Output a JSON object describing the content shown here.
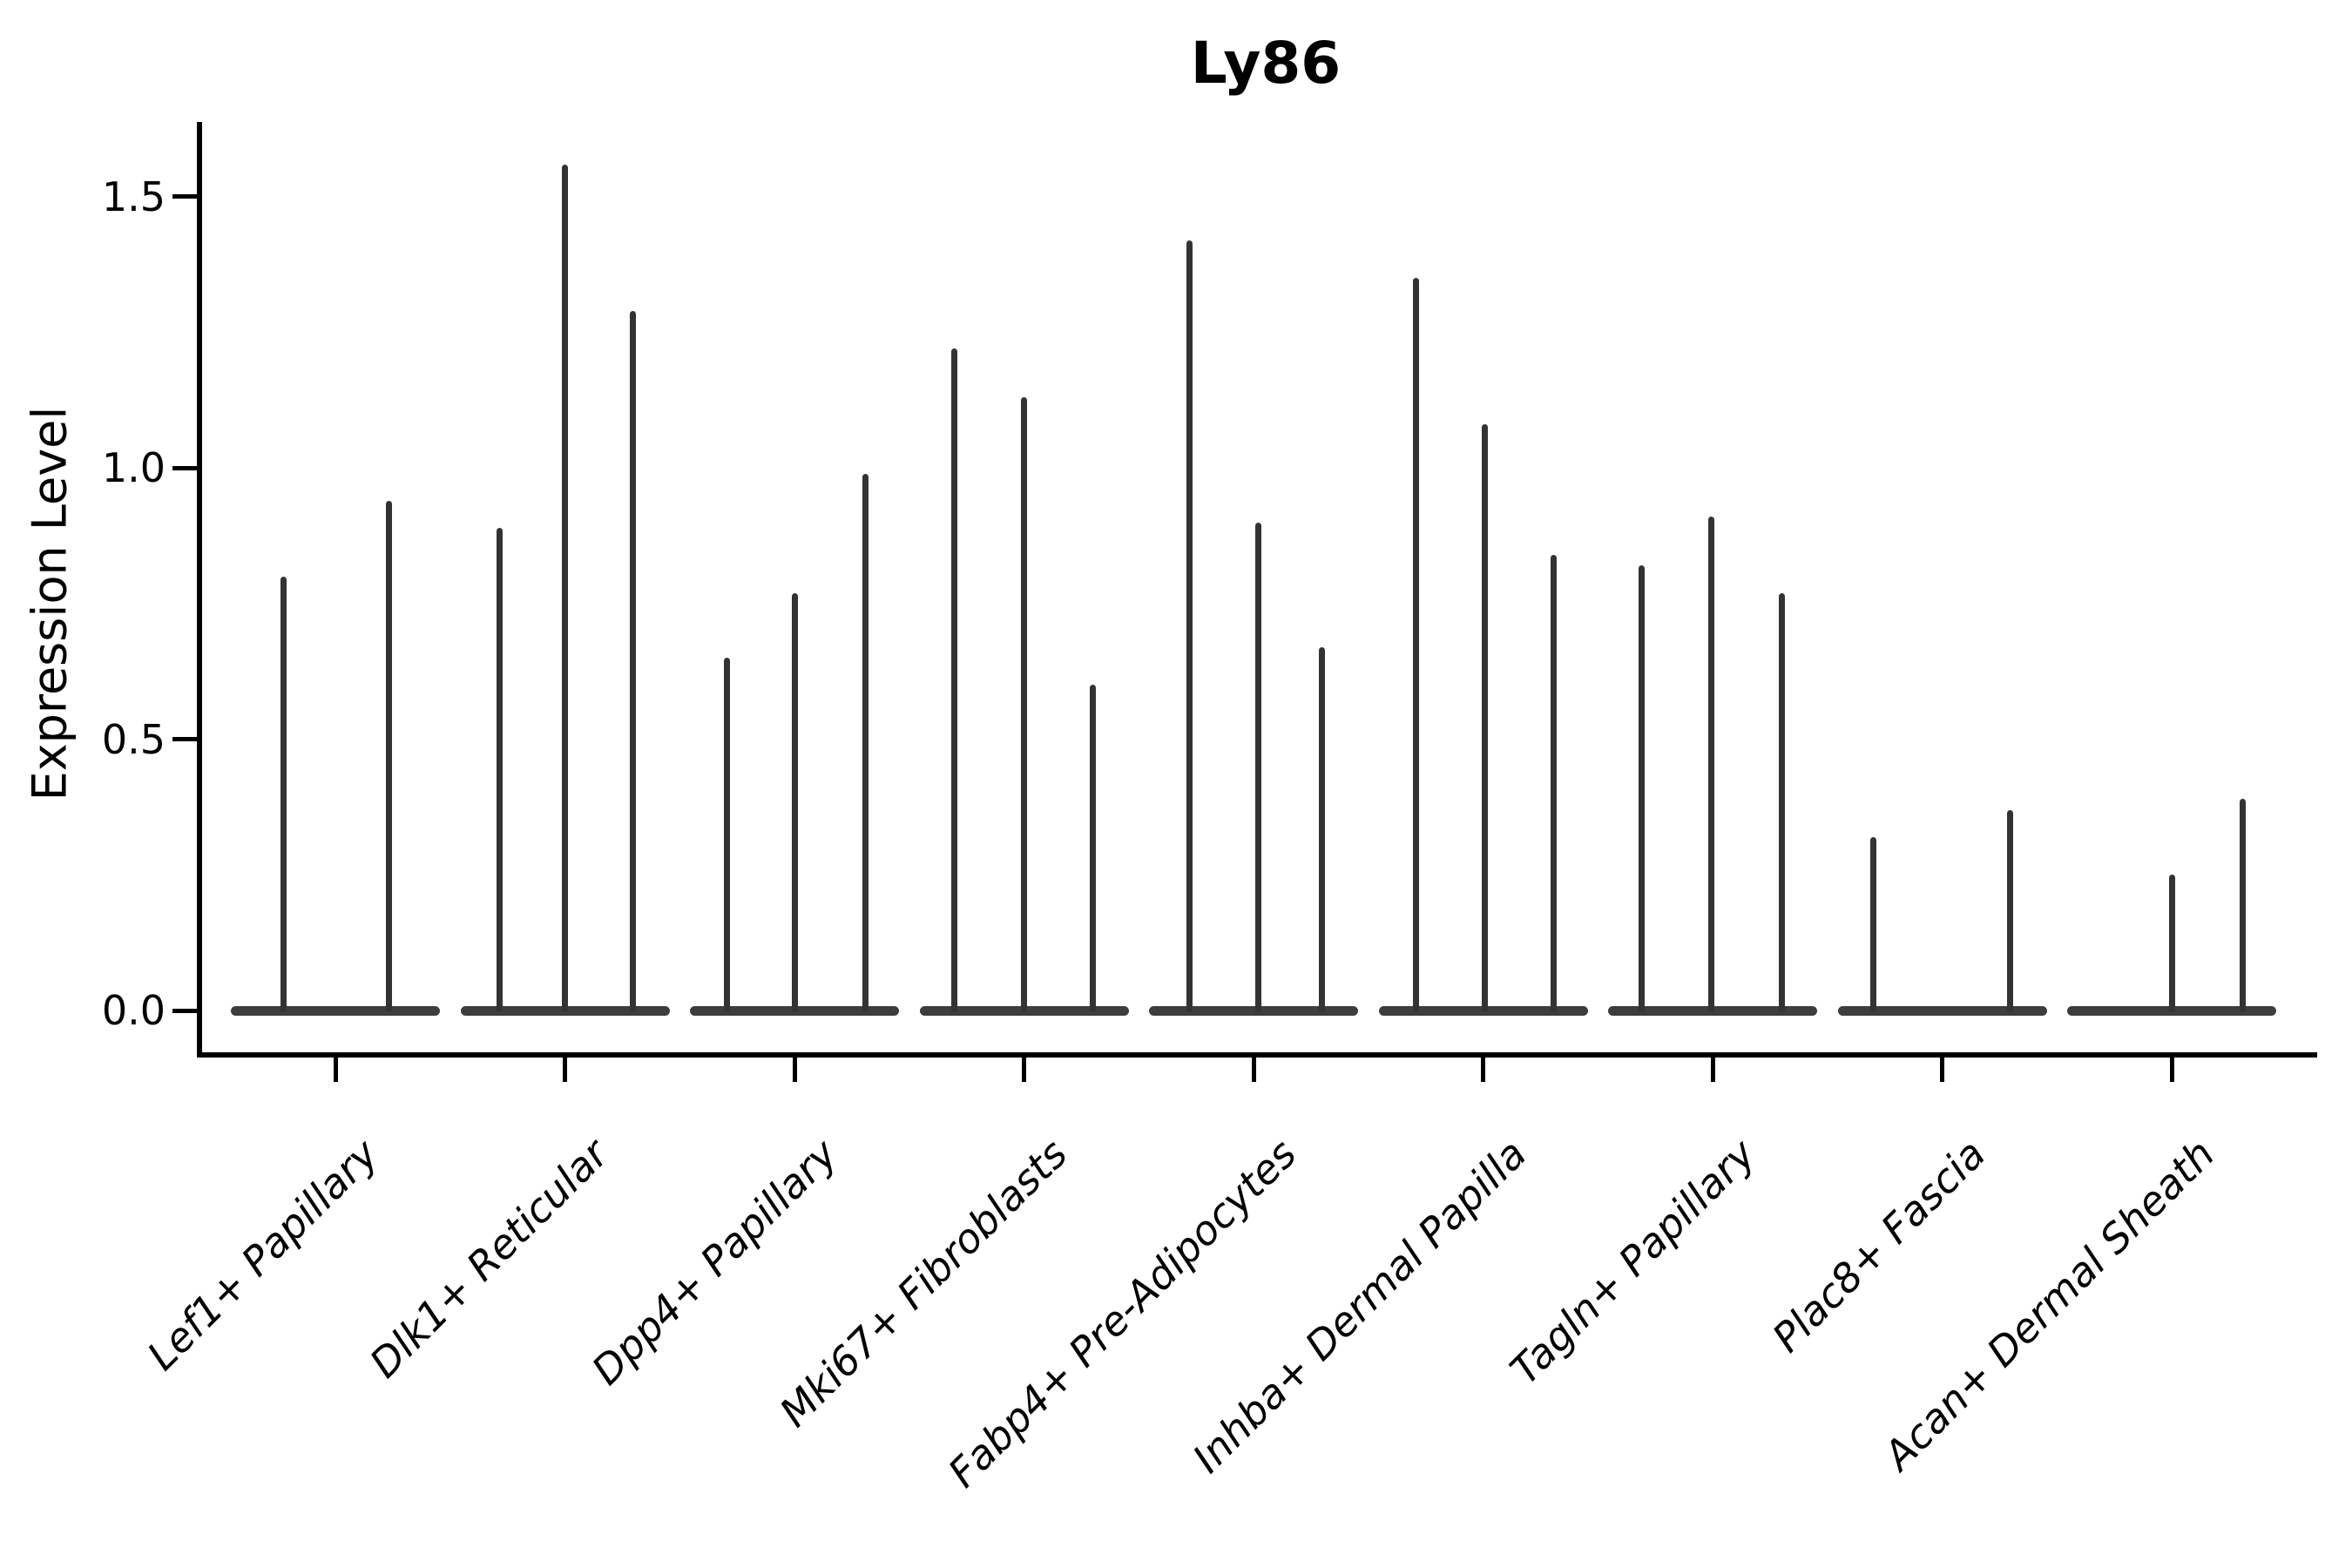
{
  "figure": {
    "title": "Ly86",
    "background_color": "#ffffff",
    "axis_color": "#000000",
    "violin_color": "#333333",
    "violin_base_color": "#3d3d3d"
  },
  "chart_data": {
    "type": "violin",
    "title": "Ly86",
    "xlabel": "",
    "ylabel": "Expression Level",
    "ylim": [
      -0.08,
      1.64
    ],
    "yticks": [
      0.0,
      0.5,
      1.0,
      1.5
    ],
    "ytick_labels": [
      "0.0",
      "0.5",
      "1.0",
      "1.5"
    ],
    "grid": false,
    "legend": "none",
    "categories": [
      "Lef1+ Papillary",
      "Dlk1+ Reticular",
      "Dpp4+ Papillary",
      "Mki67+ Fibroblasts",
      "Fabp4+ Pre-Adipocytes",
      "Inhba+ Dermal Papilla",
      "Tagln+ Papillary",
      "Plac8+ Fascia",
      "Acan+ Dermal Sheath"
    ],
    "violins": [
      {
        "category": "Lef1+ Papillary",
        "spikes": [
          {
            "offset": -60,
            "max": 0.8
          },
          {
            "offset": 61,
            "max": 0.94
          }
        ]
      },
      {
        "category": "Dlk1+ Reticular",
        "spikes": [
          {
            "offset": -75,
            "max": 0.89
          },
          {
            "offset": 0,
            "max": 1.56
          },
          {
            "offset": 78,
            "max": 1.29
          }
        ]
      },
      {
        "category": "Dpp4+ Papillary",
        "spikes": [
          {
            "offset": -78,
            "max": 0.65
          },
          {
            "offset": 0,
            "max": 0.77
          },
          {
            "offset": 81,
            "max": 0.99
          }
        ]
      },
      {
        "category": "Mki67+ Fibroblasts",
        "spikes": [
          {
            "offset": -80,
            "max": 1.22
          },
          {
            "offset": 0,
            "max": 1.13
          },
          {
            "offset": 79,
            "max": 0.6
          }
        ]
      },
      {
        "category": "Fabp4+ Pre-Adipocytes",
        "spikes": [
          {
            "offset": -74,
            "max": 1.42
          },
          {
            "offset": 5,
            "max": 0.9
          },
          {
            "offset": 78,
            "max": 0.67
          }
        ]
      },
      {
        "category": "Inhba+ Dermal Papilla",
        "spikes": [
          {
            "offset": -77,
            "max": 1.35
          },
          {
            "offset": 2,
            "max": 1.08
          },
          {
            "offset": 81,
            "max": 0.84
          }
        ]
      },
      {
        "category": "Tagln+ Papillary",
        "spikes": [
          {
            "offset": -82,
            "max": 0.82
          },
          {
            "offset": -2,
            "max": 0.91
          },
          {
            "offset": 79,
            "max": 0.77
          }
        ]
      },
      {
        "category": "Plac8+ Fascia",
        "spikes": [
          {
            "offset": -79,
            "max": 0.32
          },
          {
            "offset": 78,
            "max": 0.37
          }
        ]
      },
      {
        "category": "Acan+ Dermal Sheath",
        "spikes": [
          {
            "offset": 0,
            "max": 0.25
          },
          {
            "offset": 81,
            "max": 0.39
          }
        ]
      }
    ]
  }
}
